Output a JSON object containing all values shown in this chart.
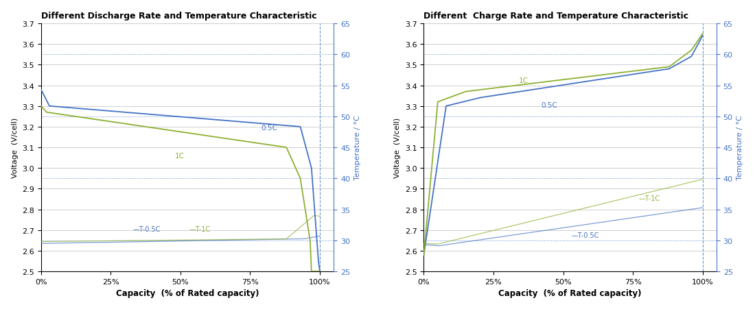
{
  "title_left": "Different Discharge Rate and Temperature Characteristic",
  "title_right": "Different  Charge Rate and Temperature Characteristic",
  "xlabel": "Capacity  (% of Rated capacity)",
  "ylabel_left": "Voltage  (V/cell)",
  "ylabel_right": "Temperature / °C",
  "voltage_ylim": [
    2.5,
    3.7
  ],
  "temp_ylim": [
    25,
    65
  ],
  "voltage_yticks": [
    2.5,
    2.6,
    2.7,
    2.8,
    2.9,
    3.0,
    3.1,
    3.2,
    3.3,
    3.4,
    3.5,
    3.6,
    3.7
  ],
  "temp_yticks": [
    25,
    30,
    35,
    40,
    45,
    50,
    55,
    60,
    65
  ],
  "xticks": [
    0,
    0.25,
    0.5,
    0.75,
    1.0
  ],
  "xticklabels": [
    "0%",
    "25%",
    "50%",
    "75%",
    "100%"
  ],
  "color_blue": "#4472C4",
  "color_yellow": "#8DB030",
  "color_temp_dotted": "#4472C4",
  "background": "#FFFFFF",
  "grid_color": "#BBBBBB",
  "dotted_temp_vals": [
    30,
    40,
    50,
    60
  ]
}
